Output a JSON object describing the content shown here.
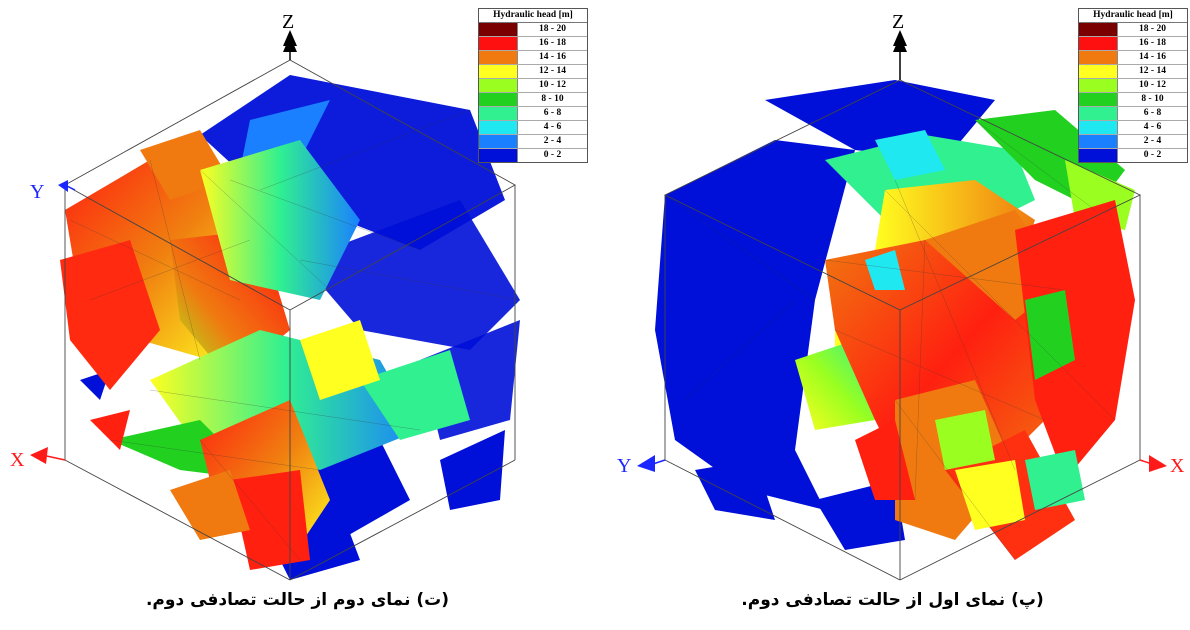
{
  "legend": {
    "title": "Hydraulic head [m]",
    "entries": [
      {
        "label": "18 - 20",
        "color": "#7a0000"
      },
      {
        "label": "16 - 18",
        "color": "#ff1010"
      },
      {
        "label": "14 - 16",
        "color": "#f07a10"
      },
      {
        "label": "12 - 14",
        "color": "#ffff20"
      },
      {
        "label": "10 - 12",
        "color": "#9aff20"
      },
      {
        "label": "8 - 10",
        "color": "#22d020"
      },
      {
        "label": "6 - 8",
        "color": "#30f090"
      },
      {
        "label": "4 - 6",
        "color": "#20e8f0"
      },
      {
        "label": "2 - 4",
        "color": "#1a80ff"
      },
      {
        "label": "0 - 2",
        "color": "#0010d8"
      }
    ]
  },
  "left": {
    "caption": "(ت) نمای دوم از حالت تصادفی دوم.",
    "axes": {
      "z": "Z",
      "x": "X",
      "y": "Y"
    }
  },
  "right": {
    "caption": "(پ) نمای اول از حالت تصادفی دوم.",
    "axes": {
      "z": "Z",
      "x": "X",
      "y": "Y"
    }
  },
  "colors": {
    "z_axis": "#000000",
    "x_axis": "#ff1a1a",
    "y_axis": "#1a28ff"
  }
}
